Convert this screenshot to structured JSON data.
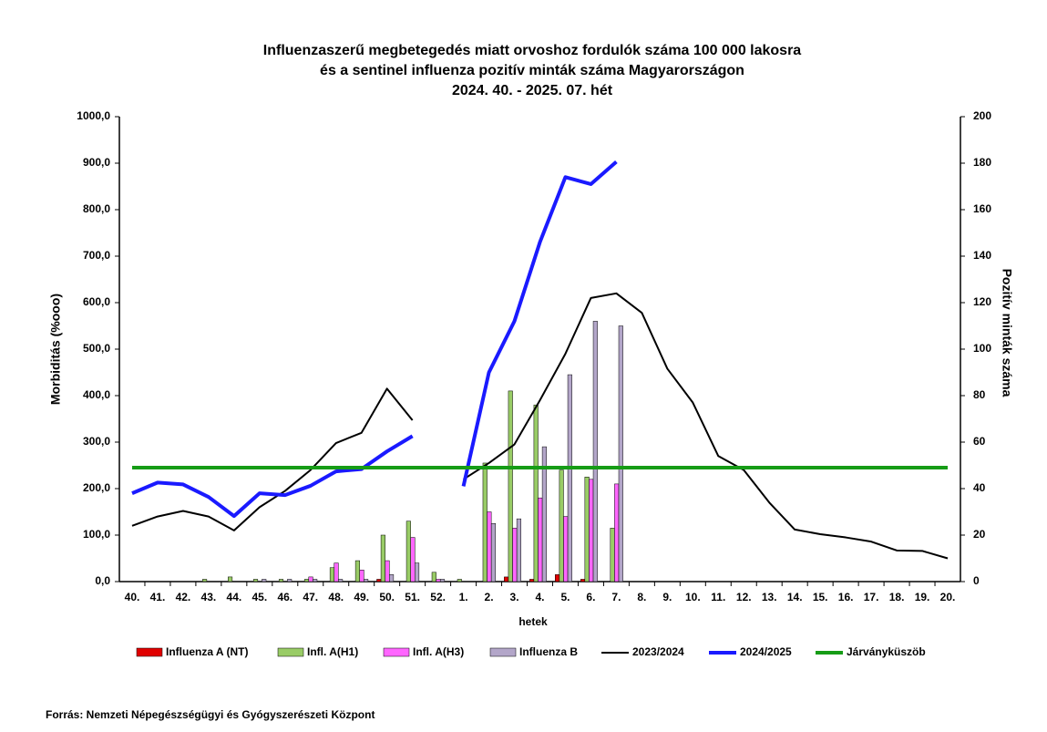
{
  "chart_data": {
    "type": "bar",
    "title": [
      "Influenzaszerű megbetegedés miatt orvoshoz fordulók száma 100 000 lakosra",
      "és a sentinel influenza pozitív minták száma Magyarországon",
      "2024. 40. - 2025. 07. hét"
    ],
    "x_label": "hetek",
    "y_label": "Morbiditás (%ooo)",
    "y2_label": "Pozitív minták száma",
    "source": "Forrás: Nemzeti Népegészségügyi és Gyógyszerészeti Központ",
    "categories": [
      "40.",
      "41.",
      "42.",
      "43.",
      "44.",
      "45.",
      "46.",
      "47.",
      "48.",
      "49.",
      "50.",
      "51.",
      "52.",
      "1.",
      "2.",
      "3.",
      "4.",
      "5.",
      "6.",
      "7.",
      "8.",
      "9.",
      "10.",
      "11.",
      "12.",
      "13.",
      "14.",
      "15.",
      "16.",
      "17.",
      "18.",
      "19.",
      "20."
    ],
    "ylim": [
      0,
      1000
    ],
    "yticks": [
      {
        "value": 0,
        "label": "0,0"
      },
      {
        "value": 100,
        "label": "100,0"
      },
      {
        "value": 200,
        "label": "200,0"
      },
      {
        "value": 300,
        "label": "300,0"
      },
      {
        "value": 400,
        "label": "400,0"
      },
      {
        "value": 500,
        "label": "500,0"
      },
      {
        "value": 600,
        "label": "600,0"
      },
      {
        "value": 700,
        "label": "700,0"
      },
      {
        "value": 800,
        "label": "800,0"
      },
      {
        "value": 900,
        "label": "900,0"
      },
      {
        "value": 1000,
        "label": "1000,0"
      }
    ],
    "y2lim": [
      0,
      200
    ],
    "y2ticks": [
      0,
      20,
      40,
      60,
      80,
      100,
      120,
      140,
      160,
      180,
      200
    ],
    "grid": false,
    "series": [
      {
        "name": "Influenza A (NT)",
        "color": "#e00000",
        "axis": "y2",
        "type": "bar",
        "values": [
          0,
          0,
          0,
          0,
          0,
          0,
          0,
          0,
          0,
          0,
          1,
          0,
          0,
          0,
          0,
          2,
          1,
          3,
          1,
          0,
          null,
          null,
          null,
          null,
          null,
          null,
          null,
          null,
          null,
          null,
          null,
          null,
          null
        ]
      },
      {
        "name": "Infl. A(H1)",
        "color": "#99cc66",
        "axis": "y2",
        "type": "bar",
        "values": [
          0,
          0,
          0,
          1,
          2,
          1,
          1,
          1,
          6,
          9,
          20,
          26,
          4,
          1,
          51,
          82,
          76,
          48,
          45,
          23,
          null,
          null,
          null,
          null,
          null,
          null,
          null,
          null,
          null,
          null,
          null,
          null,
          null
        ]
      },
      {
        "name": "Infl. A(H3)",
        "color": "#ff66ff",
        "axis": "y2",
        "type": "bar",
        "values": [
          0,
          0,
          0,
          0,
          0,
          0,
          0,
          2,
          8,
          5,
          9,
          19,
          1,
          0,
          30,
          23,
          36,
          28,
          44,
          42,
          null,
          null,
          null,
          null,
          null,
          null,
          null,
          null,
          null,
          null,
          null,
          null,
          null
        ]
      },
      {
        "name": "Influenza B",
        "color": "#b3a6c9",
        "axis": "y2",
        "type": "bar",
        "values": [
          0,
          0,
          0,
          0,
          0,
          1,
          1,
          1,
          1,
          1,
          3,
          8,
          1,
          0,
          25,
          27,
          58,
          89,
          112,
          110,
          null,
          null,
          null,
          null,
          null,
          null,
          null,
          null,
          null,
          null,
          null,
          null,
          null
        ]
      },
      {
        "name": "2023/2024",
        "color": "#000000",
        "type": "line",
        "width": 2,
        "values": [
          120,
          140,
          152,
          140,
          110,
          160,
          195,
          240,
          298,
          320,
          415,
          347,
          null,
          220,
          255,
          295,
          390,
          490,
          610,
          620,
          578,
          458,
          385,
          270,
          240,
          170,
          112,
          102,
          95,
          86,
          67,
          66,
          50
        ]
      },
      {
        "name": "2024/2025",
        "color": "#1a1aff",
        "type": "line",
        "width": 4,
        "values": [
          190,
          213,
          209,
          182,
          141,
          190,
          186,
          206,
          237,
          242,
          280,
          313,
          null,
          205,
          450,
          560,
          730,
          870,
          855,
          903,
          null,
          null,
          null,
          null,
          null,
          null,
          null,
          null,
          null,
          null,
          null,
          null,
          null
        ]
      },
      {
        "name": "Járványküszöb",
        "color": "#169c16",
        "type": "line",
        "width": 4,
        "values": [
          245,
          245,
          245,
          245,
          245,
          245,
          245,
          245,
          245,
          245,
          245,
          245,
          245,
          245,
          245,
          245,
          245,
          245,
          245,
          245,
          245,
          245,
          245,
          245,
          245,
          245,
          245,
          245,
          245,
          245,
          245,
          245,
          245
        ]
      }
    ]
  }
}
